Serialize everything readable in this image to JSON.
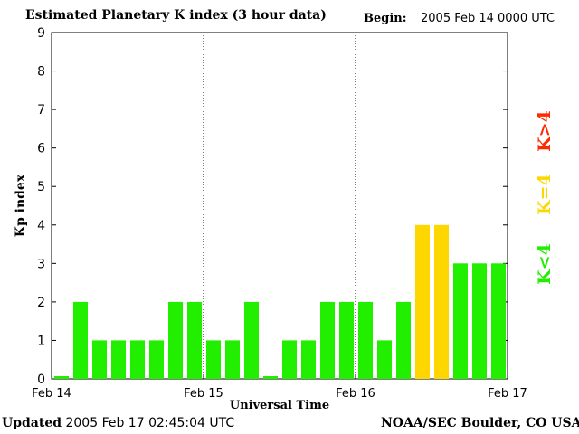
{
  "header": {
    "title": "Estimated Planetary K index (3 hour data)",
    "begin_label": "Begin:",
    "begin_value": "2005 Feb 14 0000 UTC"
  },
  "footer": {
    "updated_label": "Updated",
    "updated_value": "2005 Feb 17 02:45:04 UTC",
    "credit": "NOAA/SEC Boulder, CO USA"
  },
  "legend": {
    "items": [
      {
        "label": "K>4",
        "color": "#ff2a00"
      },
      {
        "label": "K=4",
        "color": "#ffd700"
      },
      {
        "label": "K<4",
        "color": "#22ee00"
      }
    ]
  },
  "colors": {
    "below_4": "#22ee00",
    "equal_4": "#ffd700",
    "above_4": "#ff2a00"
  },
  "chart_data": {
    "type": "bar",
    "title": "Estimated Planetary K index (3 hour data)",
    "xlabel": "Universal Time",
    "ylabel": "Kp index",
    "ylim": [
      0,
      9
    ],
    "yticks": [
      0,
      1,
      2,
      3,
      4,
      5,
      6,
      7,
      8,
      9
    ],
    "xtick_labels": [
      "Feb 14",
      "Feb 15",
      "Feb 16",
      "Feb 17"
    ],
    "day_separators": [
      "Feb 15",
      "Feb 16"
    ],
    "interval_hours": 3,
    "values": [
      0,
      2,
      1,
      1,
      1,
      1,
      2,
      2,
      1,
      1,
      2,
      0,
      1,
      1,
      2,
      2,
      2,
      1,
      2,
      4,
      4,
      3,
      3,
      3
    ]
  }
}
